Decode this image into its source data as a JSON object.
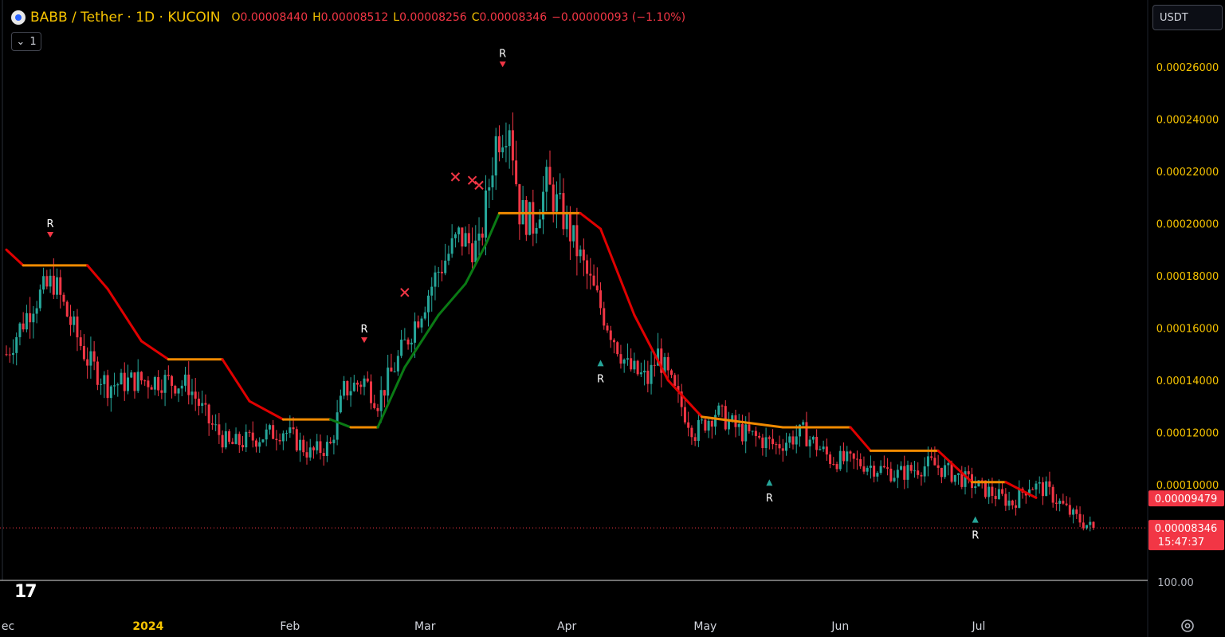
{
  "header": {
    "symbol": "BABB / Tether · 1D · KUCOIN",
    "o_key": "O",
    "o_val": "0.00008440",
    "h_key": "H",
    "h_val": "0.00008512",
    "l_key": "L",
    "l_val": "0.00008256",
    "c_key": "C",
    "c_val": "0.00008346",
    "change": "−0.00000093 (−1.10%)",
    "collapse_count": "1",
    "currency": "USDT"
  },
  "colors": {
    "bull": "#26a69a",
    "bear": "#f23645",
    "supertrend_down": "#e00000",
    "supertrend_up": "#0a7a14",
    "flat": "#f08a00",
    "axis_text": "#f7c400"
  },
  "chart_data": {
    "type": "candlestick",
    "ylim": [
      6e-05,
      0.000275
    ],
    "y_ticks": [
      "0.00026000",
      "0.00024000",
      "0.00022000",
      "0.00020000",
      "0.00018000",
      "0.00016000",
      "0.00014000",
      "0.00012000",
      "0.00010000"
    ],
    "y_bottom_label": "100.00",
    "x_ticks": [
      "ec",
      "2024",
      "Feb",
      "Mar",
      "Apr",
      "May",
      "Jun",
      "Jul"
    ],
    "price_badges": {
      "supertrend": "0.00009479",
      "last": "0.00008346",
      "countdown": "15:47:37"
    },
    "anchors": [
      [
        0,
        0.00015
      ],
      [
        8,
        0.00017
      ],
      [
        14,
        0.000178
      ],
      [
        18,
        0.000165
      ],
      [
        24,
        0.000148
      ],
      [
        30,
        0.000138
      ],
      [
        38,
        0.00014
      ],
      [
        46,
        0.00014
      ],
      [
        54,
        0.000138
      ],
      [
        60,
        0.000124
      ],
      [
        66,
        0.000115
      ],
      [
        74,
        0.000118
      ],
      [
        82,
        0.000121
      ],
      [
        90,
        0.000112
      ],
      [
        96,
        0.000115
      ],
      [
        100,
        0.000136
      ],
      [
        106,
        0.00014
      ],
      [
        110,
        0.000132
      ],
      [
        116,
        0.000148
      ],
      [
        122,
        0.000165
      ],
      [
        128,
        0.000182
      ],
      [
        134,
        0.000195
      ],
      [
        140,
        0.00019
      ],
      [
        145,
        0.000232
      ],
      [
        149,
        0.00024
      ],
      [
        152,
        0.000205
      ],
      [
        156,
        0.0002
      ],
      [
        160,
        0.000215
      ],
      [
        166,
        0.0002
      ],
      [
        172,
        0.00018
      ],
      [
        178,
        0.000162
      ],
      [
        184,
        0.000145
      ],
      [
        190,
        0.00014
      ],
      [
        193,
        0.00015
      ],
      [
        198,
        0.000135
      ],
      [
        204,
        0.00012
      ],
      [
        210,
        0.000128
      ],
      [
        218,
        0.00012
      ],
      [
        228,
        0.000115
      ],
      [
        236,
        0.00012
      ],
      [
        244,
        0.00011
      ],
      [
        254,
        0.000108
      ],
      [
        264,
        0.000104
      ],
      [
        274,
        0.000108
      ],
      [
        282,
        0.000103
      ],
      [
        290,
        9.8e-05
      ],
      [
        298,
        9.3e-05
      ],
      [
        303,
        0.0001
      ],
      [
        308,
        9.8e-05
      ],
      [
        316,
        8.8e-05
      ],
      [
        322,
        8.3e-05
      ]
    ],
    "supertrend": [
      [
        0,
        0.00019,
        "down"
      ],
      [
        5,
        0.000184,
        "flat"
      ],
      [
        24,
        0.000184,
        "down"
      ],
      [
        30,
        0.000175,
        "down"
      ],
      [
        40,
        0.000155,
        "down"
      ],
      [
        48,
        0.000148,
        "flat"
      ],
      [
        64,
        0.000148,
        "down"
      ],
      [
        72,
        0.000132,
        "down"
      ],
      [
        82,
        0.000125,
        "flat"
      ],
      [
        96,
        0.000125,
        "up"
      ],
      [
        102,
        0.000122,
        "flat"
      ],
      [
        110,
        0.000122,
        "up"
      ],
      [
        118,
        0.000145,
        "up"
      ],
      [
        128,
        0.000165,
        "up"
      ],
      [
        136,
        0.000177,
        "up"
      ],
      [
        142,
        0.000192,
        "up"
      ],
      [
        146,
        0.000204,
        "flat"
      ],
      [
        170,
        0.000204,
        "down"
      ],
      [
        176,
        0.000198,
        "down"
      ],
      [
        186,
        0.000165,
        "down"
      ],
      [
        196,
        0.00014,
        "down"
      ],
      [
        206,
        0.000126,
        "flat"
      ],
      [
        230,
        0.000122,
        "flat"
      ],
      [
        250,
        0.000122,
        "down"
      ],
      [
        256,
        0.000113,
        "flat"
      ],
      [
        276,
        0.000113,
        "down"
      ],
      [
        286,
        0.000101,
        "flat"
      ],
      [
        296,
        0.000101,
        "down"
      ],
      [
        305,
        9.5e-05,
        "down"
      ]
    ],
    "markers": [
      {
        "bar": 13,
        "type": "sell",
        "label": "R"
      },
      {
        "bar": 106,
        "type": "sell",
        "label": "R"
      },
      {
        "bar": 147,
        "type": "sell",
        "label": "R"
      },
      {
        "bar": 176,
        "type": "buy",
        "label": "R"
      },
      {
        "bar": 226,
        "type": "buy",
        "label": "R"
      },
      {
        "bar": 287,
        "type": "buy",
        "label": "R"
      },
      {
        "bar": 118,
        "type": "x"
      },
      {
        "bar": 133,
        "type": "x"
      },
      {
        "bar": 138,
        "type": "x"
      },
      {
        "bar": 140,
        "type": "x"
      }
    ],
    "x_label_bars": {
      "ec": 0,
      "2024": 42,
      "Feb": 84,
      "Mar": 124,
      "Apr": 166,
      "May": 207,
      "Jun": 247,
      "Jul": 288
    }
  }
}
